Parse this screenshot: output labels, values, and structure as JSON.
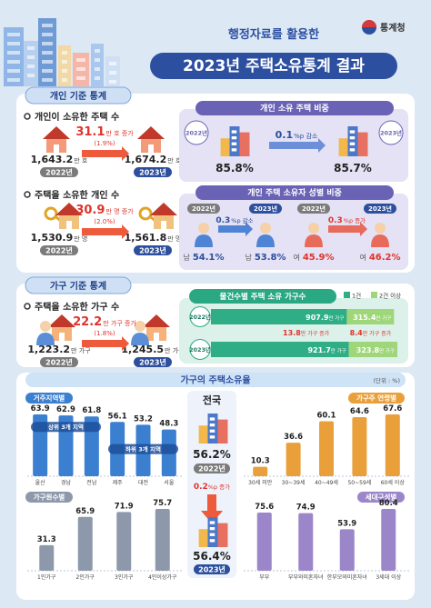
{
  "header": {
    "subtitle": "행정자료를 활용한",
    "title": "2023년 주택소유통계 결과",
    "logo": "통계청"
  },
  "individual": {
    "tab": "개인 기준 통계",
    "houses": {
      "label": "개인이 소유한 주택 수",
      "before": {
        "value": "1,643.2",
        "unit": "만 호",
        "year": "2022년"
      },
      "after": {
        "value": "1,674.2",
        "unit": "만 호",
        "year": "2023년"
      },
      "change": {
        "value": "31.1",
        "unit": "만 호 증가",
        "pct": "(1.9%)"
      }
    },
    "share": {
      "title": "개인 소유 주택 비중",
      "before": {
        "year": "2022년",
        "value": "85.8%"
      },
      "after": {
        "year": "2023년",
        "value": "85.7%"
      },
      "change": {
        "value": "0.1",
        "unit": "%p 감소"
      }
    },
    "owners": {
      "label": "주택을 소유한 개인 수",
      "before": {
        "value": "1,530.9",
        "unit": "만 명",
        "year": "2022년"
      },
      "after": {
        "value": "1,561.8",
        "unit": "만 명",
        "year": "2023년"
      },
      "change": {
        "value": "30.9",
        "unit": "만 명 증가",
        "pct": "(2.0%)"
      }
    },
    "gender": {
      "title": "개인 주택 소유자 성별 비중",
      "male": {
        "before": {
          "year": "2022년",
          "sex": "남",
          "value": "54.1%"
        },
        "after": {
          "year": "2023년",
          "sex": "남",
          "value": "53.8%"
        },
        "change": {
          "value": "0.3",
          "unit": "%p 감소"
        }
      },
      "female": {
        "before": {
          "year": "2022년",
          "sex": "여",
          "value": "45.9%"
        },
        "after": {
          "year": "2023년",
          "sex": "여",
          "value": "46.2%"
        },
        "change": {
          "value": "0.3",
          "unit": "%p 증가"
        }
      }
    }
  },
  "household": {
    "tab": "가구 기준 통계",
    "households": {
      "label": "주택을 소유한 가구 수",
      "before": {
        "value": "1,223.2",
        "unit": "만 가구",
        "year": "2022년"
      },
      "after": {
        "value": "1,245.5",
        "unit": "만 가구",
        "year": "2023년"
      },
      "change": {
        "value": "22.2",
        "unit": "만 가구 증가",
        "pct": "(1.8%)"
      }
    },
    "by_count": {
      "title": "물건수별 주택 소유 가구수",
      "unit": "만 가구",
      "categories": [
        "2022년",
        "2023년"
      ],
      "series": [
        {
          "name": "1건",
          "color": "#2fae86",
          "values": [
            907.9,
            921.7
          ]
        },
        {
          "name": "2건 이상",
          "color": "#9fd67a",
          "values": [
            315.4,
            323.8
          ]
        }
      ],
      "changes": [
        {
          "value": "13.8",
          "unit": "만 가구 증가"
        },
        {
          "value": "8.4",
          "unit": "만 가구 증가"
        }
      ]
    }
  },
  "ownership_rate": {
    "title": "가구의 주택소유율",
    "unit": "(단위 : %)",
    "region": {
      "label": "거주지역별",
      "color": "#3b7fd0",
      "categories": [
        "울산",
        "경남",
        "전남",
        "제주",
        "대전",
        "서울"
      ],
      "values": [
        63.9,
        62.9,
        61.8,
        56.1,
        53.2,
        48.3
      ],
      "group_labels": [
        "상위 3개 지역",
        "하위 3개 지역"
      ]
    },
    "age": {
      "label": "가구주 연령별",
      "color": "#e9a03a",
      "categories": [
        "30세 미만",
        "30~39세",
        "40~49세",
        "50~59세",
        "60세 이상"
      ],
      "values": [
        10.3,
        36.6,
        60.1,
        64.6,
        67.6
      ]
    },
    "size": {
      "label": "가구원수별",
      "color": "#8d99ab",
      "categories": [
        "1인가구",
        "2인가구",
        "3인가구",
        "4인이상가구"
      ],
      "values": [
        31.3,
        65.9,
        71.9,
        75.7
      ]
    },
    "composition": {
      "label": "세대구성별",
      "color": "#9a86c9",
      "categories": [
        "부부",
        "부부와미혼자녀",
        "한부모와미혼자녀",
        "3세대 이상"
      ],
      "values": [
        75.6,
        74.9,
        53.9,
        80.4
      ]
    },
    "national": {
      "label": "전국",
      "before": {
        "value": "56.2%",
        "year": "2022년"
      },
      "after": {
        "value": "56.4%",
        "year": "2023년"
      },
      "change": {
        "value": "0.2",
        "unit": "%p 증가"
      }
    }
  }
}
